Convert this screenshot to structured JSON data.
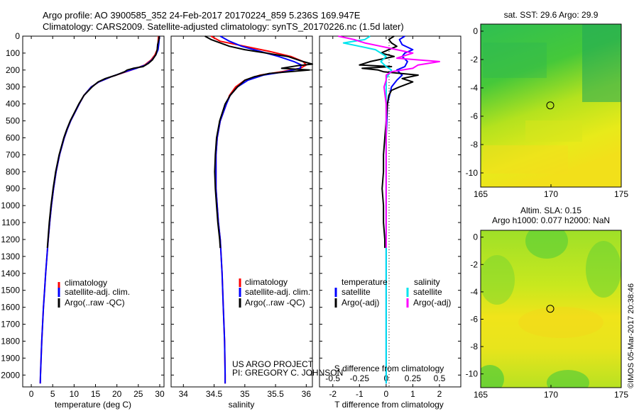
{
  "header": {
    "line1": "Argo profile: AO 3900585_352 24-Feb-2017 20170224_859 5.236S 169.947E",
    "line2": "Climatology: CARS2009. Satellite-adjusted climatology: synTS_20170226.nc (1.5d later)"
  },
  "colors": {
    "climatology": "#ff0000",
    "satellite": "#0000ff",
    "argo": "#000000",
    "sal_sat": "#00e5ee",
    "sal_argo": "#ff00ff"
  },
  "credit": {
    "line1": "US ARGO PROJECT",
    "line2": "PI: GREGORY C. JOHNSON"
  },
  "watermark": "©IMOS 05-Mar-2017 20:38:46",
  "chart_data": [
    {
      "type": "line",
      "id": "temperature",
      "xlabel": "temperature (deg C)",
      "ylabel": "",
      "xlim": [
        -2,
        31
      ],
      "ylim": [
        2070,
        0
      ],
      "xticks": [
        0,
        5,
        10,
        15,
        20,
        25,
        30
      ],
      "yticks": [
        0,
        100,
        200,
        300,
        400,
        500,
        600,
        700,
        800,
        900,
        1000,
        1100,
        1200,
        1300,
        1400,
        1500,
        1600,
        1700,
        1800,
        1900,
        2000
      ],
      "legend": [
        "climatology",
        "satellite-adj. clim.",
        "Argo(..raw -QC)"
      ],
      "series": [
        {
          "name": "climatology",
          "depth": [
            0,
            40,
            80,
            110,
            140,
            170,
            190,
            210,
            240,
            270,
            300,
            350,
            400,
            450,
            500,
            550,
            600,
            700,
            800,
            900,
            1000,
            1100,
            1200,
            1300,
            1400,
            1500,
            1600,
            1700,
            1800,
            1900,
            2000,
            2050
          ],
          "values": [
            29.7,
            29.6,
            29.4,
            28.9,
            28.0,
            26.5,
            24.5,
            22.2,
            18.6,
            15.8,
            14.0,
            12.3,
            11.2,
            10.2,
            9.2,
            8.4,
            7.7,
            6.6,
            5.8,
            5.2,
            4.7,
            4.3,
            3.95,
            3.65,
            3.35,
            3.1,
            2.85,
            2.65,
            2.45,
            2.3,
            2.15,
            2.1
          ]
        },
        {
          "name": "satellite-adj. clim.",
          "depth": [
            0,
            40,
            80,
            110,
            140,
            170,
            190,
            210,
            240,
            270,
            300,
            350,
            400,
            450,
            500,
            550,
            600,
            700,
            800,
            900,
            1000,
            1100,
            1200,
            1300,
            1400,
            1500,
            1600,
            1700,
            1800,
            1900,
            2000,
            2050
          ],
          "values": [
            29.9,
            29.8,
            29.6,
            29.1,
            28.2,
            26.7,
            24.5,
            22.0,
            18.6,
            15.8,
            14.0,
            12.3,
            11.2,
            10.2,
            9.2,
            8.4,
            7.7,
            6.6,
            5.8,
            5.2,
            4.7,
            4.3,
            3.95,
            3.65,
            3.35,
            3.1,
            2.85,
            2.65,
            2.45,
            2.3,
            2.15,
            2.1
          ]
        },
        {
          "name": "Argo(..raw -QC)",
          "depth": [
            0,
            20,
            50,
            80,
            110,
            140,
            160,
            180,
            190,
            200,
            210,
            230,
            250,
            270,
            300,
            350,
            400,
            450,
            500,
            550,
            600,
            700,
            800,
            900,
            1000,
            1100,
            1200,
            1250
          ],
          "values": [
            29.9,
            29.8,
            29.5,
            29.4,
            29.1,
            28.3,
            27.4,
            26.1,
            23.8,
            22.4,
            21.8,
            19.8,
            17.3,
            15.6,
            14.2,
            12.3,
            11.1,
            10.1,
            9.1,
            8.3,
            7.6,
            6.5,
            5.7,
            5.1,
            4.6,
            4.2,
            3.9,
            3.75
          ]
        }
      ]
    },
    {
      "type": "line",
      "id": "salinity",
      "xlabel": "salinity",
      "xlim": [
        33.8,
        36.1
      ],
      "ylim": [
        2070,
        0
      ],
      "xticks": [
        34,
        34.5,
        35,
        35.5,
        36
      ],
      "xticklabels": [
        "34",
        "34.5",
        "35",
        "35.5",
        "36"
      ],
      "legend": [
        "climatology",
        "satellite-adj. clim.",
        "Argo(..raw -QC)"
      ],
      "series": [
        {
          "name": "climatology",
          "depth": [
            0,
            30,
            60,
            90,
            120,
            150,
            170,
            190,
            210,
            230,
            260,
            300,
            350,
            400,
            500,
            600,
            700,
            800,
            900,
            1000,
            1100,
            1200,
            1400,
            1600,
            1800,
            2000,
            2050
          ],
          "values": [
            34.45,
            34.6,
            35.0,
            35.4,
            35.75,
            35.95,
            36.0,
            35.9,
            35.6,
            35.25,
            35.0,
            34.85,
            34.75,
            34.7,
            34.6,
            34.55,
            34.53,
            34.53,
            34.53,
            34.55,
            34.57,
            34.6,
            34.63,
            34.65,
            34.67,
            34.68,
            34.68
          ]
        },
        {
          "name": "satellite-adj. clim.",
          "depth": [
            0,
            30,
            60,
            90,
            120,
            150,
            170,
            190,
            210,
            230,
            260,
            300,
            350,
            400,
            500,
            600,
            700,
            800,
            900,
            1000,
            1100,
            1200,
            1400,
            1600,
            1800,
            2000,
            2050
          ],
          "values": [
            34.6,
            34.75,
            34.95,
            35.25,
            35.55,
            35.8,
            35.92,
            35.9,
            35.65,
            35.3,
            35.05,
            34.88,
            34.76,
            34.7,
            34.6,
            34.55,
            34.53,
            34.53,
            34.53,
            34.55,
            34.57,
            34.6,
            34.63,
            34.65,
            34.67,
            34.68,
            34.68
          ]
        },
        {
          "name": "Argo(..raw -QC)",
          "depth": [
            0,
            20,
            40,
            60,
            80,
            100,
            120,
            150,
            165,
            175,
            190,
            200,
            220,
            240,
            260,
            300,
            350,
            400,
            500,
            600,
            700,
            800,
            900,
            1000,
            1100,
            1200,
            1250
          ],
          "values": [
            34.35,
            34.45,
            34.6,
            34.75,
            35.0,
            35.35,
            35.7,
            35.95,
            36.1,
            35.85,
            35.6,
            36.05,
            35.4,
            35.15,
            35.0,
            34.88,
            34.76,
            34.68,
            34.59,
            34.54,
            34.52,
            34.51,
            34.52,
            34.54,
            34.56,
            34.59,
            34.6
          ]
        }
      ]
    },
    {
      "type": "line",
      "id": "difference",
      "xlabel": "T difference from climatology",
      "xlabel_top": "S difference from climatology",
      "xlim": [
        -2.5,
        2.8
      ],
      "ylim": [
        2070,
        0
      ],
      "xticks": [
        -2,
        -1,
        0,
        1,
        2
      ],
      "xticks_top": [
        -0.5,
        -0.25,
        0,
        0.25,
        0.5
      ],
      "xticklabels_top": [
        "-0.5",
        "-0.25",
        "0",
        "0.25",
        "0.5"
      ],
      "legend_titles": [
        "temperature",
        "salinity"
      ],
      "legend": [
        "satellite",
        "Argo(-adj)",
        "satellite",
        "Argo(-adj)"
      ],
      "series": [
        {
          "name": "temperature satellite",
          "depth": [
            0,
            20,
            50,
            80,
            100,
            120,
            150,
            180,
            200,
            230,
            260,
            300,
            400,
            600,
            800,
            1000,
            1200,
            2050
          ],
          "values": [
            0.7,
            0.5,
            0.6,
            1.0,
            0.7,
            0.6,
            0.8,
            0.7,
            0.4,
            0.6,
            0.4,
            0.2,
            0.05,
            0.0,
            0.0,
            0.0,
            0.0,
            0.0
          ]
        },
        {
          "name": "temperature Argo(-adj)",
          "depth": [
            0,
            20,
            40,
            60,
            80,
            100,
            120,
            150,
            170,
            180,
            190,
            200,
            210,
            230,
            250,
            270,
            300,
            320,
            350,
            400,
            500,
            600,
            700,
            800,
            900,
            1000,
            1100,
            1200,
            1250
          ],
          "values": [
            0.3,
            0.1,
            0.2,
            0.4,
            0.1,
            -0.2,
            0.3,
            -0.6,
            -1.0,
            0.2,
            -0.9,
            -0.3,
            -0.1,
            1.2,
            0.6,
            1.0,
            0.5,
            0.2,
            0.1,
            0.05,
            0.0,
            -0.05,
            -0.1,
            -0.1,
            -0.15,
            -0.1,
            -0.1,
            -0.05,
            -0.05
          ]
        },
        {
          "name": "salinity satellite",
          "depth": [
            0,
            20,
            40,
            60,
            80,
            100,
            120,
            150,
            180,
            200,
            250,
            300,
            400,
            600,
            800,
            1000,
            1200,
            2050
          ],
          "values": [
            -0.15,
            -0.2,
            -0.4,
            -0.25,
            -0.1,
            -0.05,
            0.0,
            -0.05,
            0.0,
            0.05,
            0.0,
            0.0,
            0.0,
            0.0,
            0.0,
            0.0,
            0.0,
            0.0
          ]
        },
        {
          "name": "salinity Argo(-adj)",
          "depth": [
            0,
            20,
            40,
            60,
            80,
            100,
            130,
            150,
            170,
            190,
            210,
            230,
            260,
            300,
            400,
            600,
            800,
            1000,
            1200,
            1250
          ],
          "values": [
            -0.45,
            -0.3,
            -0.2,
            -0.05,
            0.1,
            0.25,
            0.1,
            0.5,
            0.3,
            0.25,
            0.05,
            0.0,
            0.0,
            -0.02,
            0.0,
            0.0,
            0.0,
            0.0,
            0.0,
            0.0
          ]
        }
      ]
    },
    {
      "type": "heatmap",
      "id": "sst-map",
      "title": "sat. SST: 29.6 Argo: 29.9",
      "xlim": [
        165,
        175
      ],
      "ylim": [
        -11,
        0.5
      ],
      "xticks": [
        165,
        170,
        175
      ],
      "yticks": [
        0,
        -2,
        -4,
        -6,
        -8,
        -10
      ],
      "marker": {
        "lon": 169.947,
        "lat": -5.236
      }
    },
    {
      "type": "heatmap",
      "id": "sla-map",
      "title": "Altim. SLA: 0.15",
      "subtitle": "Argo h1000: 0.077 h2000: NaN",
      "xlim": [
        165,
        175
      ],
      "ylim": [
        -11,
        0.5
      ],
      "xticks": [
        165,
        170,
        175
      ],
      "yticks": [
        0,
        -2,
        -4,
        -6,
        -8,
        -10
      ],
      "marker": {
        "lon": 169.947,
        "lat": -5.236
      }
    }
  ]
}
